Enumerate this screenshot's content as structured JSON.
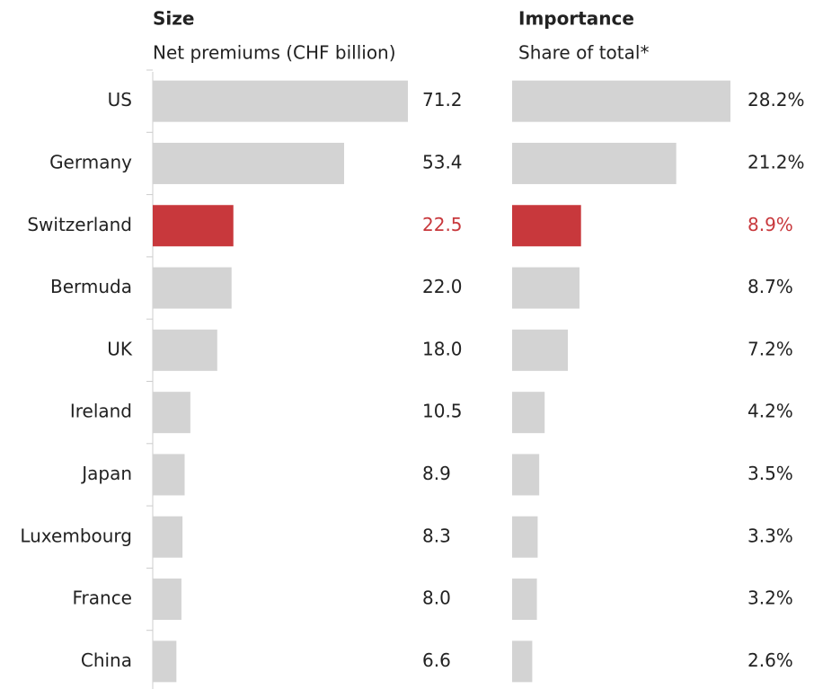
{
  "chart_data": [
    {
      "type": "hbar",
      "title": "Size",
      "subtitle": "Net premiums (CHF billion)",
      "categories": [
        "US",
        "Germany",
        "Switzerland",
        "Bermuda",
        "UK",
        "Ireland",
        "Japan",
        "Luxembourg",
        "France",
        "China"
      ],
      "values": [
        71.2,
        53.4,
        22.5,
        22.0,
        18.0,
        10.5,
        8.9,
        8.3,
        8.0,
        6.6
      ],
      "value_labels": [
        "71.2",
        "53.4",
        "22.5",
        "22.0",
        "18.0",
        "10.5",
        "8.9",
        "8.3",
        "8.0",
        "6.6"
      ],
      "color": "#d3d3d3",
      "highlight": "Switzerland",
      "highlight_color": "#c8383c"
    },
    {
      "type": "hbar",
      "title": "Importance",
      "subtitle": "Share of total*",
      "values": [
        28.2,
        21.2,
        8.9,
        8.7,
        7.2,
        4.2,
        3.5,
        3.3,
        3.2,
        2.6
      ],
      "value_labels": [
        "28.2%",
        "21.2%",
        "8.9%",
        "8.7%",
        "7.2%",
        "4.2%",
        "3.5%",
        "3.3%",
        "3.2%",
        "2.6%"
      ],
      "color": "#d3d3d3",
      "highlight": "Switzerland",
      "highlight_color": "#c8383c"
    }
  ]
}
